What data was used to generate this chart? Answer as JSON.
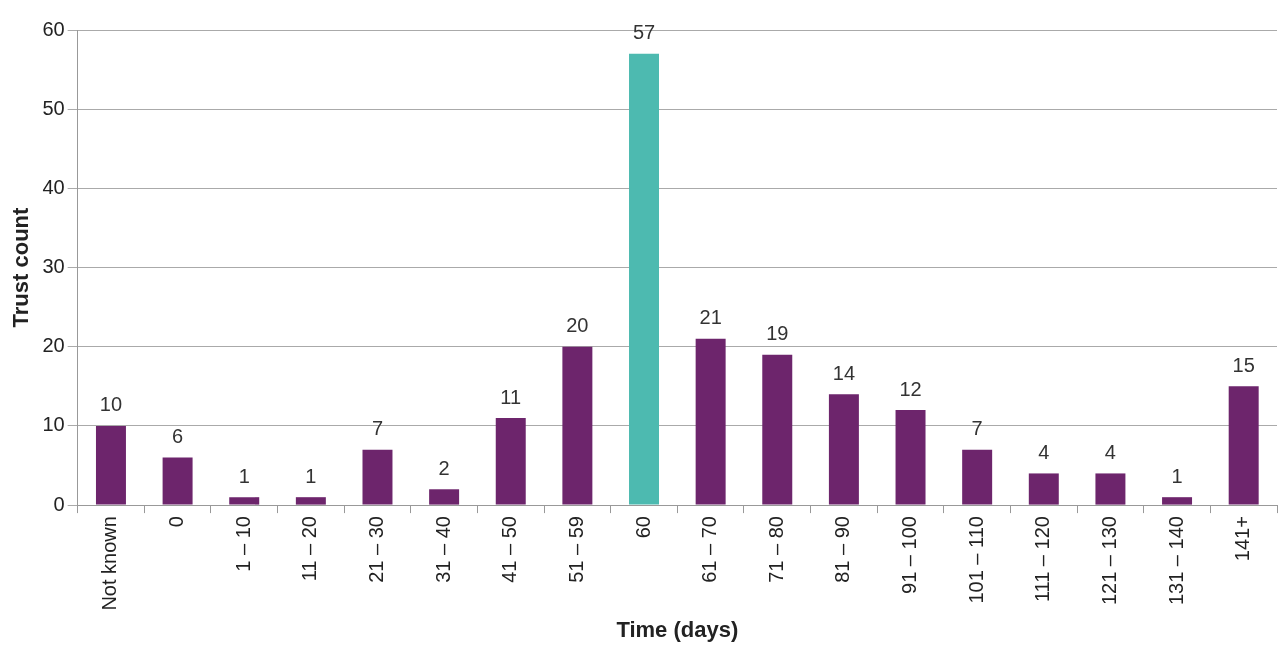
{
  "chart_data": {
    "type": "bar",
    "xlabel": "Time (days)",
    "ylabel": "Trust count",
    "categories": [
      "Not known",
      "0",
      "1 – 10",
      "11 – 20",
      "21 – 30",
      "31 – 40",
      "41 – 50",
      "51 – 59",
      "60",
      "61 – 70",
      "71 – 80",
      "81 – 90",
      "91 – 100",
      "101 – 110",
      "111 – 120",
      "121 – 130",
      "131 – 140",
      "141+"
    ],
    "values": [
      10,
      6,
      1,
      1,
      7,
      2,
      11,
      20,
      57,
      21,
      19,
      14,
      12,
      7,
      4,
      4,
      1,
      15
    ],
    "colors": [
      "#6d256c",
      "#6d256c",
      "#6d256c",
      "#6d256c",
      "#6d256c",
      "#6d256c",
      "#6d256c",
      "#6d256c",
      "#4dbab0",
      "#6d256c",
      "#6d256c",
      "#6d256c",
      "#6d256c",
      "#6d256c",
      "#6d256c",
      "#6d256c",
      "#6d256c",
      "#6d256c"
    ],
    "ylim": [
      0,
      60
    ],
    "yticks": [
      0,
      10,
      20,
      30,
      40,
      50,
      60
    ],
    "grid": "y",
    "legend": false,
    "data_labels": true
  }
}
